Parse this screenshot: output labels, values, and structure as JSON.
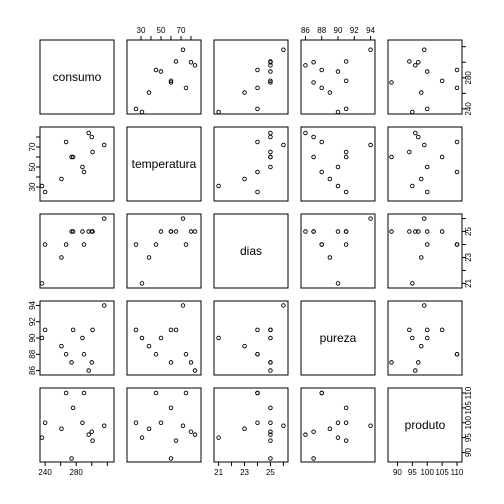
{
  "chart_data": {
    "type": "scatter",
    "variables": [
      {
        "name": "consumo",
        "range": [
          236,
          326
        ],
        "ticks": [
          240,
          260,
          280,
          300,
          320
        ],
        "tick_labels": [
          "240",
          "",
          "280",
          "",
          ""
        ]
      },
      {
        "name": "temperatura",
        "range": [
          18,
          88
        ],
        "ticks": [
          30,
          40,
          50,
          60,
          70,
          80
        ],
        "tick_labels": [
          "30",
          "",
          "50",
          "",
          "70",
          ""
        ]
      },
      {
        "name": "dias",
        "range": [
          20.8,
          26.2
        ],
        "ticks": [
          21,
          22,
          23,
          24,
          25,
          26
        ],
        "tick_labels": [
          "21",
          "",
          "23",
          "",
          "25",
          ""
        ]
      },
      {
        "name": "pureza",
        "range": [
          85.7,
          94.3
        ],
        "ticks": [
          86,
          88,
          90,
          92,
          94
        ],
        "tick_labels": [
          "86",
          "88",
          "90",
          "92",
          "94"
        ]
      },
      {
        "name": "produto",
        "range": [
          87.5,
          111
        ],
        "ticks": [
          90,
          95,
          100,
          105,
          110
        ],
        "tick_labels": [
          "90",
          "95",
          "100",
          "105",
          "110"
        ]
      }
    ],
    "tick_label_sides": {
      "top": [
        null,
        1,
        null,
        3,
        null
      ],
      "bottom": [
        0,
        null,
        2,
        null,
        4
      ],
      "left": [
        null,
        1,
        null,
        3,
        null
      ],
      "right": [
        0,
        null,
        2,
        null,
        4
      ]
    },
    "observations": [
      [
        240,
        25,
        24,
        91,
        100
      ],
      [
        236,
        31,
        21,
        90,
        95
      ],
      [
        290,
        45,
        24,
        88,
        110
      ],
      [
        274,
        60,
        25,
        87,
        88
      ],
      [
        301,
        65,
        25,
        91,
        94
      ],
      [
        316,
        72,
        26,
        94,
        99
      ],
      [
        300,
        80,
        25,
        87,
        97
      ],
      [
        296,
        84,
        25,
        86,
        96
      ],
      [
        267,
        75,
        24,
        88,
        110
      ],
      [
        276,
        60,
        25,
        91,
        105
      ],
      [
        288,
        50,
        25,
        90,
        100
      ],
      [
        261,
        38,
        23,
        89,
        98
      ]
    ]
  }
}
